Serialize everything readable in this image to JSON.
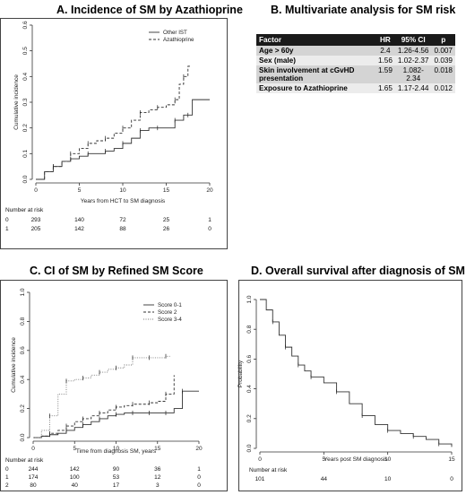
{
  "panels": {
    "a_title": "A. Incidence of SM by Azathioprine",
    "b_title": "B. Multivariate analysis for SM risk",
    "c_title": "C. CI of SM by Refined SM Score",
    "d_title": "D. Overall survival after diagnosis of SM"
  },
  "table": {
    "headers": [
      "Factor",
      "HR",
      "95% CI",
      "p"
    ],
    "rows": [
      [
        "Age > 60y",
        "2.4",
        "1.26-4.56",
        "0.007"
      ],
      [
        "Sex (male)",
        "1.56",
        "1.02-2.37",
        "0.039"
      ],
      [
        "Skin involvement at cGvHD presentation",
        "1.59",
        "1.082-2.34",
        "0.018"
      ],
      [
        "Exposure to Azathioprine",
        "1.65",
        "1.17-2.44",
        "0.012"
      ]
    ]
  },
  "chart_data": [
    {
      "id": "A",
      "type": "line",
      "title": "A. Incidence of SM by Azathioprine",
      "xlabel": "Years from HCT to SM diagnosis",
      "ylabel": "Cumulative incidence",
      "xlim": [
        0,
        20
      ],
      "ylim": [
        0,
        0.6
      ],
      "xticks": [
        "0",
        "5",
        "10",
        "15",
        "20"
      ],
      "yticks": [
        "0.0",
        "0.1",
        "0.2",
        "0.3",
        "0.4",
        "0.5",
        "0.6"
      ],
      "legend": [
        "Other IST",
        "Azathioprine"
      ],
      "series": [
        {
          "name": "Other IST",
          "style": "solid",
          "x": [
            0,
            1,
            2,
            3,
            4,
            5,
            6,
            7,
            8,
            9,
            10,
            11,
            12,
            13,
            14,
            15,
            16,
            17,
            17.5,
            18,
            20
          ],
          "y": [
            0,
            0.03,
            0.05,
            0.07,
            0.08,
            0.09,
            0.1,
            0.1,
            0.11,
            0.12,
            0.14,
            0.16,
            0.19,
            0.2,
            0.2,
            0.2,
            0.23,
            0.25,
            0.25,
            0.31,
            0.31
          ]
        },
        {
          "name": "Azathioprine",
          "style": "dashed",
          "x": [
            0,
            1,
            2,
            3,
            4,
            5,
            6,
            7,
            8,
            9,
            10,
            11,
            12,
            13,
            14,
            15,
            16,
            16.5,
            17,
            17.5,
            17.8
          ],
          "y": [
            0,
            0.03,
            0.05,
            0.07,
            0.1,
            0.12,
            0.14,
            0.15,
            0.16,
            0.18,
            0.2,
            0.23,
            0.26,
            0.27,
            0.28,
            0.29,
            0.31,
            0.37,
            0.4,
            0.44,
            0.44
          ]
        }
      ],
      "risk": {
        "label": "Number at risk",
        "rows": [
          {
            "group": "0",
            "values": [
              "293",
              "140",
              "72",
              "25",
              "1"
            ]
          },
          {
            "group": "1",
            "values": [
              "205",
              "142",
              "88",
              "26",
              "0"
            ]
          }
        ]
      }
    },
    {
      "id": "C",
      "type": "line",
      "title": "C. CI of SM by Refined SM Score",
      "xlabel": "Time from diagnosis SM, years",
      "ylabel": "Cumulative incidence",
      "xlim": [
        0,
        20
      ],
      "ylim": [
        0,
        1.0
      ],
      "xticks": [
        "0",
        "5",
        "10",
        "15",
        "20"
      ],
      "yticks": [
        "0.0",
        "0.2",
        "0.4",
        "0.6",
        "0.8",
        "1.0"
      ],
      "legend": [
        "Score 0-1",
        "Score 2",
        "Score 3-4"
      ],
      "series": [
        {
          "name": "Score 0-1",
          "style": "solid",
          "x": [
            0,
            1,
            2,
            3,
            4,
            5,
            6,
            7,
            8,
            9,
            10,
            11,
            12,
            13,
            14,
            15,
            16,
            17,
            18,
            20
          ],
          "y": [
            0,
            0.01,
            0.02,
            0.03,
            0.05,
            0.07,
            0.09,
            0.11,
            0.13,
            0.15,
            0.16,
            0.17,
            0.17,
            0.17,
            0.17,
            0.17,
            0.17,
            0.2,
            0.32,
            0.32
          ]
        },
        {
          "name": "Score 2",
          "style": "dashed",
          "x": [
            0,
            1,
            2,
            3,
            4,
            5,
            6,
            7,
            8,
            9,
            10,
            11,
            12,
            13,
            14,
            15,
            16,
            17
          ],
          "y": [
            0,
            0.01,
            0.03,
            0.05,
            0.08,
            0.11,
            0.13,
            0.15,
            0.17,
            0.19,
            0.21,
            0.22,
            0.23,
            0.23,
            0.24,
            0.25,
            0.3,
            0.43
          ]
        },
        {
          "name": "Score 3-4",
          "style": "dotted",
          "x": [
            0,
            1,
            2,
            3,
            4,
            5,
            6,
            7,
            8,
            9,
            10,
            11,
            12,
            13,
            14,
            15,
            16,
            16.5
          ],
          "y": [
            0,
            0.05,
            0.15,
            0.3,
            0.39,
            0.4,
            0.41,
            0.43,
            0.45,
            0.47,
            0.48,
            0.5,
            0.55,
            0.55,
            0.55,
            0.55,
            0.56,
            0.56
          ]
        }
      ],
      "risk": {
        "label": "Number at risk",
        "rows": [
          {
            "group": "0",
            "values": [
              "244",
              "142",
              "90",
              "36",
              "1"
            ]
          },
          {
            "group": "1",
            "values": [
              "174",
              "100",
              "53",
              "12",
              "0"
            ]
          },
          {
            "group": "2",
            "values": [
              "80",
              "40",
              "17",
              "3",
              "0"
            ]
          }
        ]
      }
    },
    {
      "id": "D",
      "type": "line",
      "title": "D. Overall survival after diagnosis of SM",
      "xlabel": "Years post SM diagnosis",
      "ylabel": "Probability",
      "xlim": [
        0,
        15
      ],
      "ylim": [
        0,
        1.0
      ],
      "xticks": [
        "0",
        "5",
        "10",
        "15"
      ],
      "yticks": [
        "0.0",
        "0.2",
        "0.4",
        "0.6",
        "0.8",
        "1.0"
      ],
      "series": [
        {
          "name": "",
          "style": "solid",
          "x": [
            0,
            0.5,
            1,
            1.5,
            2,
            2.5,
            3,
            3.5,
            4,
            5,
            6,
            7,
            8,
            9,
            10,
            11,
            12,
            13,
            14,
            15
          ],
          "y": [
            1.0,
            0.93,
            0.85,
            0.76,
            0.68,
            0.62,
            0.56,
            0.52,
            0.48,
            0.44,
            0.38,
            0.3,
            0.22,
            0.16,
            0.12,
            0.1,
            0.08,
            0.06,
            0.03,
            0.01
          ]
        }
      ],
      "risk": {
        "label": "Number at risk",
        "rows": [
          {
            "group": "",
            "values": [
              "101",
              "44",
              "10",
              "0"
            ]
          }
        ]
      }
    }
  ]
}
